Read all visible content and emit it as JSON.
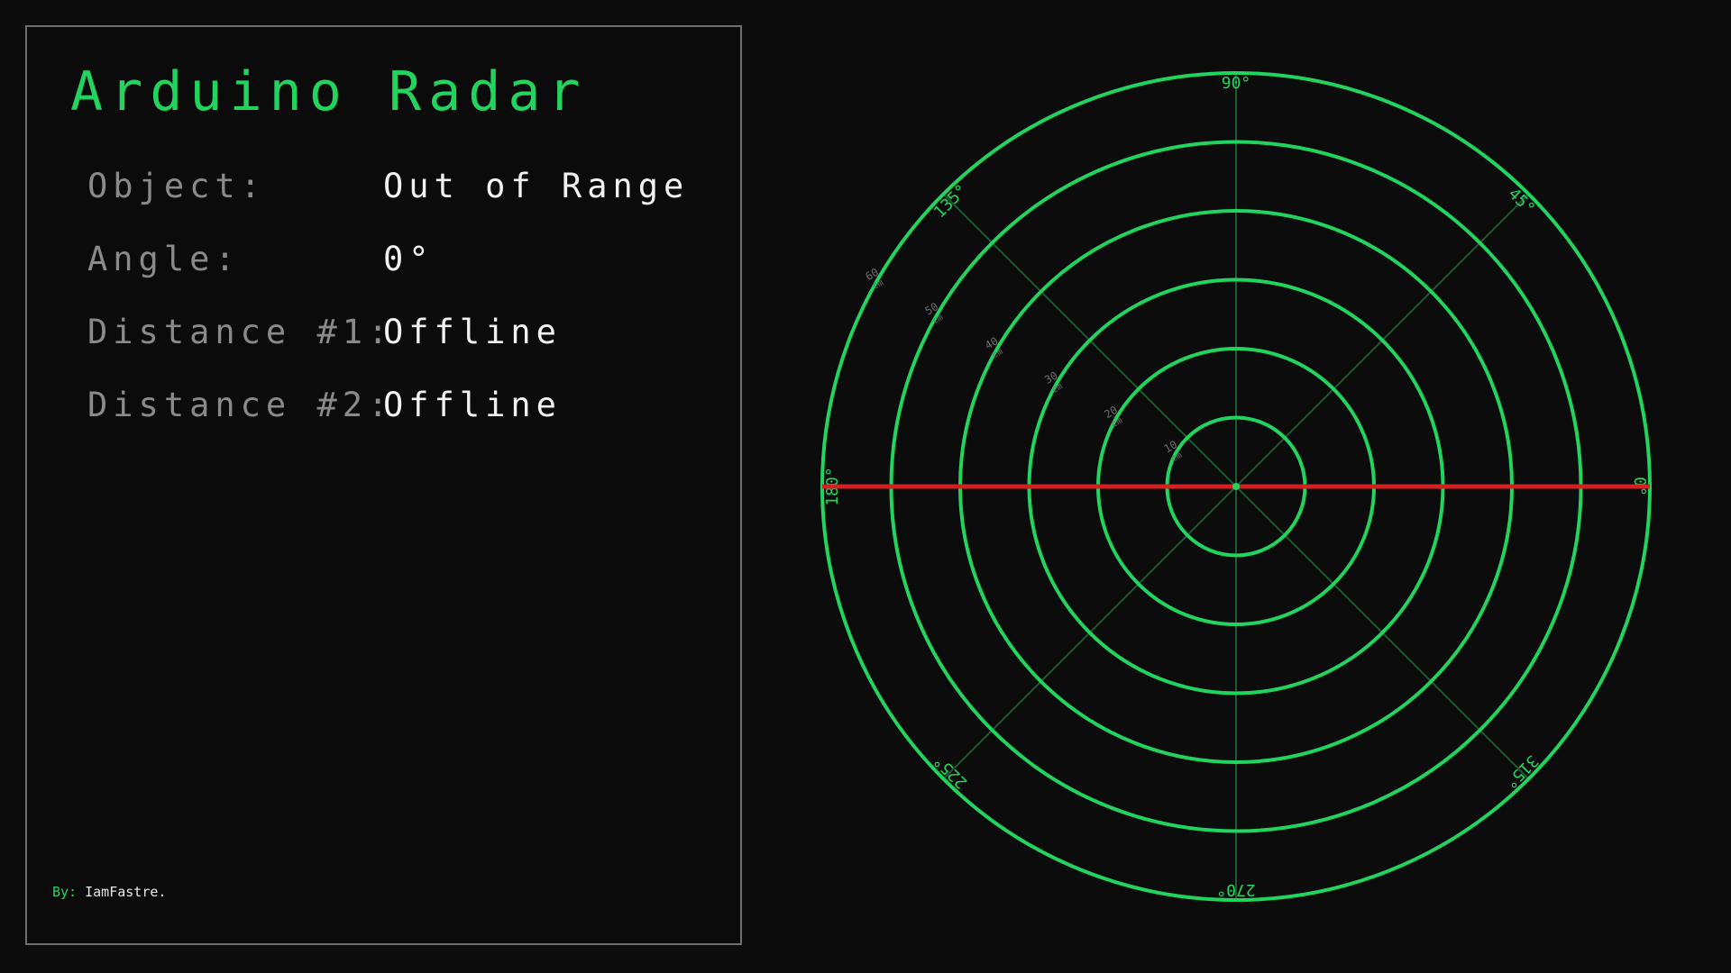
{
  "panel": {
    "title": "Arduino Radar",
    "rows": [
      {
        "label": "Object:",
        "value": "Out of Range"
      },
      {
        "label": "Angle:",
        "value": "0°"
      },
      {
        "label": "Distance #1:",
        "value": "Offline"
      },
      {
        "label": "Distance #2:",
        "value": "Offline"
      }
    ],
    "credit": {
      "prefix": "By:",
      "author": "IamFastre."
    }
  },
  "radar": {
    "sweep_angle_deg": 0,
    "max_range_cm": 60,
    "range_labels": [
      {
        "value": "10",
        "unit": "cm"
      },
      {
        "value": "20",
        "unit": "cm"
      },
      {
        "value": "30",
        "unit": "cm"
      },
      {
        "value": "40",
        "unit": "cm"
      },
      {
        "value": "50",
        "unit": "cm"
      },
      {
        "value": "60",
        "unit": "cm"
      }
    ],
    "angle_labels": [
      {
        "angle": 0,
        "text": "0°"
      },
      {
        "angle": 45,
        "text": "45°"
      },
      {
        "angle": 90,
        "text": "90°"
      },
      {
        "angle": 135,
        "text": "135°"
      },
      {
        "angle": 180,
        "text": "180°"
      },
      {
        "angle": 225,
        "text": "225°"
      },
      {
        "angle": 270,
        "text": "270°"
      },
      {
        "angle": 315,
        "text": "315°"
      }
    ],
    "colors": {
      "ring": "#22d45e",
      "spoke": "#1e5a32",
      "sweep": "#d42020",
      "range_label": "#6e6e6e",
      "angle_label": "#22d45e"
    }
  }
}
